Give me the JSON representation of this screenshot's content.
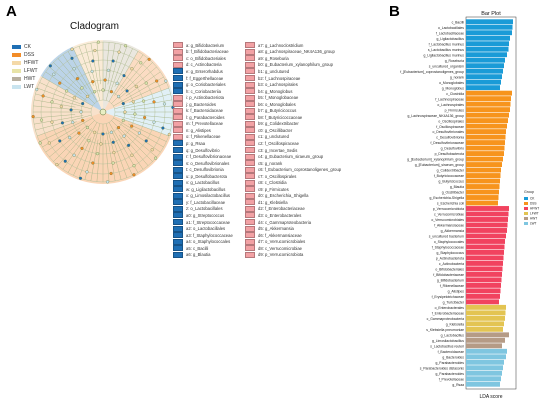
{
  "panels": {
    "a": "A",
    "b": "B"
  },
  "cladogram": {
    "title": "Cladogram",
    "groups": [
      {
        "name": "CK",
        "color": "#1f6fb4"
      },
      {
        "name": "DSS",
        "color": "#f28c28"
      },
      {
        "name": "HFWT",
        "color": "#f4d9a8"
      },
      {
        "name": "LFWT",
        "color": "#e8e4a8"
      },
      {
        "name": "HWT",
        "color": "#b8b0a0"
      },
      {
        "name": "LWT",
        "color": "#c9e4ef"
      }
    ],
    "taxa_columns": [
      [
        {
          "label": "a: g_Bifidobacterium",
          "color": "#f2a1a4"
        },
        {
          "label": "b: f_Bifidobacteriaceae",
          "color": "#f2a1a4"
        },
        {
          "label": "c: o_Bifidobacteriales",
          "color": "#f2a1a4"
        },
        {
          "label": "d: c_Actinobacteria",
          "color": "#f2a1a4"
        },
        {
          "label": "e: g_Enterorhabdus",
          "color": "#1f6fb4"
        },
        {
          "label": "f: f_Eggerthellaceae",
          "color": "#1f6fb4"
        },
        {
          "label": "g: o_Coriobacteriales",
          "color": "#1f6fb4"
        },
        {
          "label": "h: c_Coriobacteriia",
          "color": "#1f6fb4"
        },
        {
          "label": "i: p_Actinobacteriota",
          "color": "#f2a1a4"
        },
        {
          "label": "j: g_Bacteroides",
          "color": "#f2a1a4"
        },
        {
          "label": "k: f_Bacteroidaceae",
          "color": "#f2a1a4"
        },
        {
          "label": "l: g_Parabacteroides",
          "color": "#f2a1a4"
        },
        {
          "label": "m: f_Prevotellaceae",
          "color": "#f2a1a4"
        },
        {
          "label": "n: g_Alistipes",
          "color": "#f2a1a4"
        },
        {
          "label": "o: f_Rikenellaceae",
          "color": "#f2a1a4"
        },
        {
          "label": "p: g_Rsaa",
          "color": "#1f6fb4"
        },
        {
          "label": "q: g_Desulfovibrio",
          "color": "#1f6fb4"
        },
        {
          "label": "r: f_Desulfovibrionaceae",
          "color": "#1f6fb4"
        },
        {
          "label": "s: o_Desulfovibrionales",
          "color": "#1f6fb4"
        },
        {
          "label": "t: c_Desulfovibrionia",
          "color": "#1f6fb4"
        },
        {
          "label": "u: p_Desulfobacterota",
          "color": "#1f6fb4"
        },
        {
          "label": "v: g_Lactobacillus",
          "color": "#1f6fb4"
        },
        {
          "label": "w: g_Ligilactobacillus",
          "color": "#1f6fb4"
        },
        {
          "label": "x: g_Limosilactobacillus",
          "color": "#1f6fb4"
        },
        {
          "label": "y: f_Lactobacillaceae",
          "color": "#1f6fb4"
        },
        {
          "label": "z: o_Lactobacillales",
          "color": "#1f6fb4"
        },
        {
          "label": "a0: g_Streptococcus",
          "color": "#1f6fb4"
        },
        {
          "label": "a1: f_Streptococcaceae",
          "color": "#1f6fb4"
        },
        {
          "label": "a2: o_Lactobacillales",
          "color": "#1f6fb4"
        },
        {
          "label": "a3: f_Staphylococcaceae",
          "color": "#1f6fb4"
        },
        {
          "label": "a4: o_Staphylococcales",
          "color": "#1f6fb4"
        },
        {
          "label": "a5: c_Bacilli",
          "color": "#1f6fb4"
        },
        {
          "label": "a6: g_Blautia",
          "color": "#1f6fb4"
        }
      ],
      [
        {
          "label": "a7: g_Lachnoclostridium",
          "color": "#f2a1a4"
        },
        {
          "label": "a8: g_Lachnospiraceae_NK4A136_group",
          "color": "#f2a1a4"
        },
        {
          "label": "a9: g_Roseburia",
          "color": "#f2a1a4"
        },
        {
          "label": "b0: g_Eubacterium_xylanophilum_group",
          "color": "#f2a1a4"
        },
        {
          "label": "b1: g_unclutured",
          "color": "#f2a1a4"
        },
        {
          "label": "b2: f_Lachnospiraceae",
          "color": "#f2a1a4"
        },
        {
          "label": "b3: o_Lachnospirales",
          "color": "#f2a1a4"
        },
        {
          "label": "b4: g_Monoglobus",
          "color": "#f2a1a4"
        },
        {
          "label": "b5: f_Monoglobaceae",
          "color": "#f2a1a4"
        },
        {
          "label": "b6: o_Monoglobales",
          "color": "#f2a1a4"
        },
        {
          "label": "b7: g_Butyricicoccus",
          "color": "#f2a1a4"
        },
        {
          "label": "b8: f_Butyricicoccaceae",
          "color": "#f2a1a4"
        },
        {
          "label": "b9: g_Colidextribacter",
          "color": "#f2a1a4"
        },
        {
          "label": "c0: g_Oscillibacter",
          "color": "#f2a1a4"
        },
        {
          "label": "c1: g_unclutured",
          "color": "#f2a1a4"
        },
        {
          "label": "c2: f_Oscillospiraceae",
          "color": "#f2a1a4"
        },
        {
          "label": "c3: g_Incertae_Sedis",
          "color": "#f2a1a4"
        },
        {
          "label": "c4: g_Eubacterium_siraeum_group",
          "color": "#f2a1a4"
        },
        {
          "label": "c5: g_norank",
          "color": "#f2a1a4"
        },
        {
          "label": "c6: f_Eubacterium_coprostanoligenes_group",
          "color": "#f2a1a4"
        },
        {
          "label": "c7: o_Oscillospirales",
          "color": "#f2a1a4"
        },
        {
          "label": "c8: c_Clostridia",
          "color": "#f2a1a4"
        },
        {
          "label": "c9: p_Firmicutes",
          "color": "#f2a1a4"
        },
        {
          "label": "d0: g_Escherichia_Shigella",
          "color": "#f2a1a4"
        },
        {
          "label": "d1: g_Klebsiella",
          "color": "#f2a1a4"
        },
        {
          "label": "d2: f_Enterobacteriaceae",
          "color": "#f2a1a4"
        },
        {
          "label": "d3: o_Enterobacterales",
          "color": "#f2a1a4"
        },
        {
          "label": "d4: c_Gammaproteobacteria",
          "color": "#f2a1a4"
        },
        {
          "label": "d5: g_Akkermansia",
          "color": "#f2a1a4"
        },
        {
          "label": "d6: f_Akkermansiaceae",
          "color": "#f2a1a4"
        },
        {
          "label": "d7: o_Verrucomicrobiales",
          "color": "#f2a1a4"
        },
        {
          "label": "d8: c_Verrucomicrobiae",
          "color": "#f2a1a4"
        },
        {
          "label": "d9: p_Verrucomicrobiota",
          "color": "#f2a1a4"
        }
      ]
    ]
  },
  "chart_data": {
    "type": "bar",
    "orientation": "horizontal",
    "title": "Bar Plot",
    "xlabel": "LDA score",
    "ylabel": "",
    "xlim": [
      0,
      5
    ],
    "legend_title": "Group",
    "legend_placement": "right",
    "series": [
      {
        "name": "CK",
        "color": "#1a9bd7"
      },
      {
        "name": "DSS",
        "color": "#f7941d"
      },
      {
        "name": "HFWT",
        "color": "#f1435f"
      },
      {
        "name": "LFWT",
        "color": "#e3c452"
      },
      {
        "name": "HWT",
        "color": "#b59b86"
      },
      {
        "name": "LWT",
        "color": "#7fc6e0"
      }
    ],
    "bars": [
      {
        "label": "c_Bacilli",
        "value": 4.7,
        "group": "CK"
      },
      {
        "label": "o_Lactobacillales",
        "value": 4.65,
        "group": "CK"
      },
      {
        "label": "f_Lactobacillaceae",
        "value": 4.6,
        "group": "CK"
      },
      {
        "label": "g_Ligilactobacillus",
        "value": 4.4,
        "group": "CK"
      },
      {
        "label": "f_Lactobacillus murinus",
        "value": 4.3,
        "group": "CK"
      },
      {
        "label": "s_Lactobacillus murinus",
        "value": 4.25,
        "group": "CK"
      },
      {
        "label": "g_Ligilactobacillus murinus",
        "value": 4.1,
        "group": "CK"
      },
      {
        "label": "g_Roseburia",
        "value": 3.9,
        "group": "CK"
      },
      {
        "label": "s_uncultured_organism",
        "value": 3.8,
        "group": "CK"
      },
      {
        "label": "f_[Eubacterium]_coprostanoligenes_group",
        "value": 3.7,
        "group": "CK"
      },
      {
        "label": "g_norank",
        "value": 3.6,
        "group": "CK"
      },
      {
        "label": "o_Monoglobales",
        "value": 3.5,
        "group": "CK"
      },
      {
        "label": "g_Monoglobus",
        "value": 3.4,
        "group": "CK"
      },
      {
        "label": "c_Clostridia",
        "value": 4.6,
        "group": "DSS"
      },
      {
        "label": "f_Lachnospiraceae",
        "value": 4.5,
        "group": "DSS"
      },
      {
        "label": "o_Lachnospirales",
        "value": 4.45,
        "group": "DSS"
      },
      {
        "label": "p_Firmicutes",
        "value": 4.4,
        "group": "DSS"
      },
      {
        "label": "g_Lachnospiraceae_NK4A136_group",
        "value": 4.3,
        "group": "DSS"
      },
      {
        "label": "o_Oscillospirales",
        "value": 4.2,
        "group": "DSS"
      },
      {
        "label": "f_Oscillospiraceae",
        "value": 4.1,
        "group": "DSS"
      },
      {
        "label": "o_Desulfovibrionales",
        "value": 4.0,
        "group": "DSS"
      },
      {
        "label": "c_Desulfovibrionia",
        "value": 3.95,
        "group": "DSS"
      },
      {
        "label": "f_Desulfovibrionaceae",
        "value": 3.9,
        "group": "DSS"
      },
      {
        "label": "g_Desulfovibrio",
        "value": 3.85,
        "group": "DSS"
      },
      {
        "label": "p_Desulfobacterota",
        "value": 3.8,
        "group": "DSS"
      },
      {
        "label": "g_[Eubacterium]_xylanophilum_group",
        "value": 3.7,
        "group": "DSS"
      },
      {
        "label": "g_[Eubacterium]_siraeum_group",
        "value": 3.6,
        "group": "DSS"
      },
      {
        "label": "g_Colidextribacter",
        "value": 3.5,
        "group": "DSS"
      },
      {
        "label": "f_Butyricicoccaceae",
        "value": 3.45,
        "group": "DSS"
      },
      {
        "label": "g_Butyricicoccus",
        "value": 3.4,
        "group": "DSS"
      },
      {
        "label": "g_Blautia",
        "value": 3.35,
        "group": "DSS"
      },
      {
        "label": "g_Oscillibacter",
        "value": 3.3,
        "group": "DSS"
      },
      {
        "label": "g_Escherichia-Shigella",
        "value": 3.25,
        "group": "DSS"
      },
      {
        "label": "s_Escherichia coli",
        "value": 3.2,
        "group": "DSS"
      },
      {
        "label": "p_Verrucomicrobiota",
        "value": 4.3,
        "group": "HFWT"
      },
      {
        "label": "c_Verrucomicrobiae",
        "value": 4.25,
        "group": "HFWT"
      },
      {
        "label": "o_Verrucomicrobiales",
        "value": 4.2,
        "group": "HFWT"
      },
      {
        "label": "f_Akkermansiaceae",
        "value": 4.15,
        "group": "HFWT"
      },
      {
        "label": "g_Akkermansia",
        "value": 4.1,
        "group": "HFWT"
      },
      {
        "label": "s_uncultured bacterium",
        "value": 4.0,
        "group": "HFWT"
      },
      {
        "label": "o_Staphylococcales",
        "value": 3.9,
        "group": "HFWT"
      },
      {
        "label": "f_Staphylococcaceae",
        "value": 3.85,
        "group": "HFWT"
      },
      {
        "label": "g_Staphylococcus",
        "value": 3.8,
        "group": "HFWT"
      },
      {
        "label": "p_Actinobacteriota",
        "value": 3.75,
        "group": "HFWT"
      },
      {
        "label": "c_Actinobacteria",
        "value": 3.7,
        "group": "HFWT"
      },
      {
        "label": "o_Bifidobacteriales",
        "value": 3.65,
        "group": "HFWT"
      },
      {
        "label": "f_Bifidobacteriaceae",
        "value": 3.6,
        "group": "HFWT"
      },
      {
        "label": "g_Bifidobacterium",
        "value": 3.55,
        "group": "HFWT"
      },
      {
        "label": "f_Rikenellaceae",
        "value": 3.5,
        "group": "HFWT"
      },
      {
        "label": "g_Alistipes",
        "value": 3.45,
        "group": "HFWT"
      },
      {
        "label": "f_Erysipelotrichaceae",
        "value": 3.4,
        "group": "HFWT"
      },
      {
        "label": "g_Turicibacter",
        "value": 3.3,
        "group": "HFWT"
      },
      {
        "label": "o_Enterobacterales",
        "value": 4.0,
        "group": "LFWT"
      },
      {
        "label": "f_Enterobacteriaceae",
        "value": 3.95,
        "group": "LFWT"
      },
      {
        "label": "c_Gammaproteobacteria",
        "value": 3.9,
        "group": "LFWT"
      },
      {
        "label": "g_Klebsiella",
        "value": 3.8,
        "group": "LFWT"
      },
      {
        "label": "s_Klebsiella pneumoniae",
        "value": 3.7,
        "group": "LFWT"
      },
      {
        "label": "g_Lactobacillus",
        "value": 4.3,
        "group": "HWT"
      },
      {
        "label": "g_Limosilactobacillus",
        "value": 3.9,
        "group": "HWT"
      },
      {
        "label": "s_Lactobacillus reuteri",
        "value": 3.6,
        "group": "HWT"
      },
      {
        "label": "f_Bacteroidaceae",
        "value": 4.1,
        "group": "LWT"
      },
      {
        "label": "g_Bacteroides",
        "value": 4.0,
        "group": "LWT"
      },
      {
        "label": "g_Parabacteroides",
        "value": 3.8,
        "group": "LWT"
      },
      {
        "label": "s_Parabacteroides distasonis",
        "value": 3.7,
        "group": "LWT"
      },
      {
        "label": "g_Parabacteroides",
        "value": 3.6,
        "group": "LWT"
      },
      {
        "label": "f_Prevotellaceae",
        "value": 3.5,
        "group": "LWT"
      },
      {
        "label": "g_Rsaa",
        "value": 3.4,
        "group": "LWT"
      }
    ]
  }
}
